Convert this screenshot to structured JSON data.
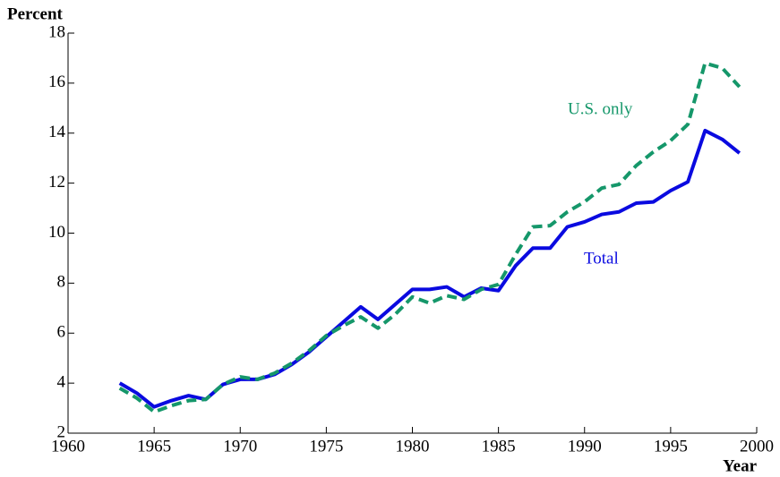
{
  "chart_data": {
    "type": "line",
    "y_label": "Percent",
    "x_label": "Year",
    "x": [
      1963,
      1964,
      1965,
      1966,
      1967,
      1968,
      1969,
      1970,
      1971,
      1972,
      1973,
      1974,
      1975,
      1976,
      1977,
      1978,
      1979,
      1980,
      1981,
      1982,
      1983,
      1984,
      1985,
      1986,
      1987,
      1988,
      1989,
      1990,
      1991,
      1992,
      1993,
      1994,
      1995,
      1996,
      1997,
      1998,
      1999
    ],
    "series": [
      {
        "name": "Total",
        "color": "#0a0ae0",
        "dash": false,
        "values": [
          4.0,
          3.6,
          3.05,
          3.3,
          3.5,
          3.35,
          3.95,
          4.15,
          4.15,
          4.35,
          4.75,
          5.25,
          5.85,
          6.45,
          7.05,
          6.55,
          7.15,
          7.75,
          7.75,
          7.85,
          7.45,
          7.8,
          7.7,
          8.7,
          9.4,
          9.4,
          10.25,
          10.45,
          10.75,
          10.85,
          11.2,
          11.25,
          11.7,
          12.05,
          14.1,
          13.75,
          13.2
        ]
      },
      {
        "name": "U.S. only",
        "color": "#15976a",
        "dash": true,
        "values": [
          3.8,
          3.4,
          2.85,
          3.1,
          3.3,
          3.35,
          3.95,
          4.25,
          4.15,
          4.4,
          4.8,
          5.3,
          5.9,
          6.3,
          6.65,
          6.2,
          6.75,
          7.45,
          7.2,
          7.5,
          7.35,
          7.75,
          7.95,
          9.15,
          10.25,
          10.3,
          10.85,
          11.25,
          11.8,
          11.95,
          12.7,
          13.25,
          13.7,
          14.35,
          16.8,
          16.6,
          15.85
        ]
      }
    ],
    "xlim": [
      1960,
      2000
    ],
    "xticks": [
      1960,
      1965,
      1970,
      1975,
      1980,
      1985,
      1990,
      1995,
      2000
    ],
    "ylim": [
      2,
      18
    ],
    "yticks": [
      2,
      4,
      6,
      8,
      10,
      12,
      14,
      16,
      18
    ]
  }
}
